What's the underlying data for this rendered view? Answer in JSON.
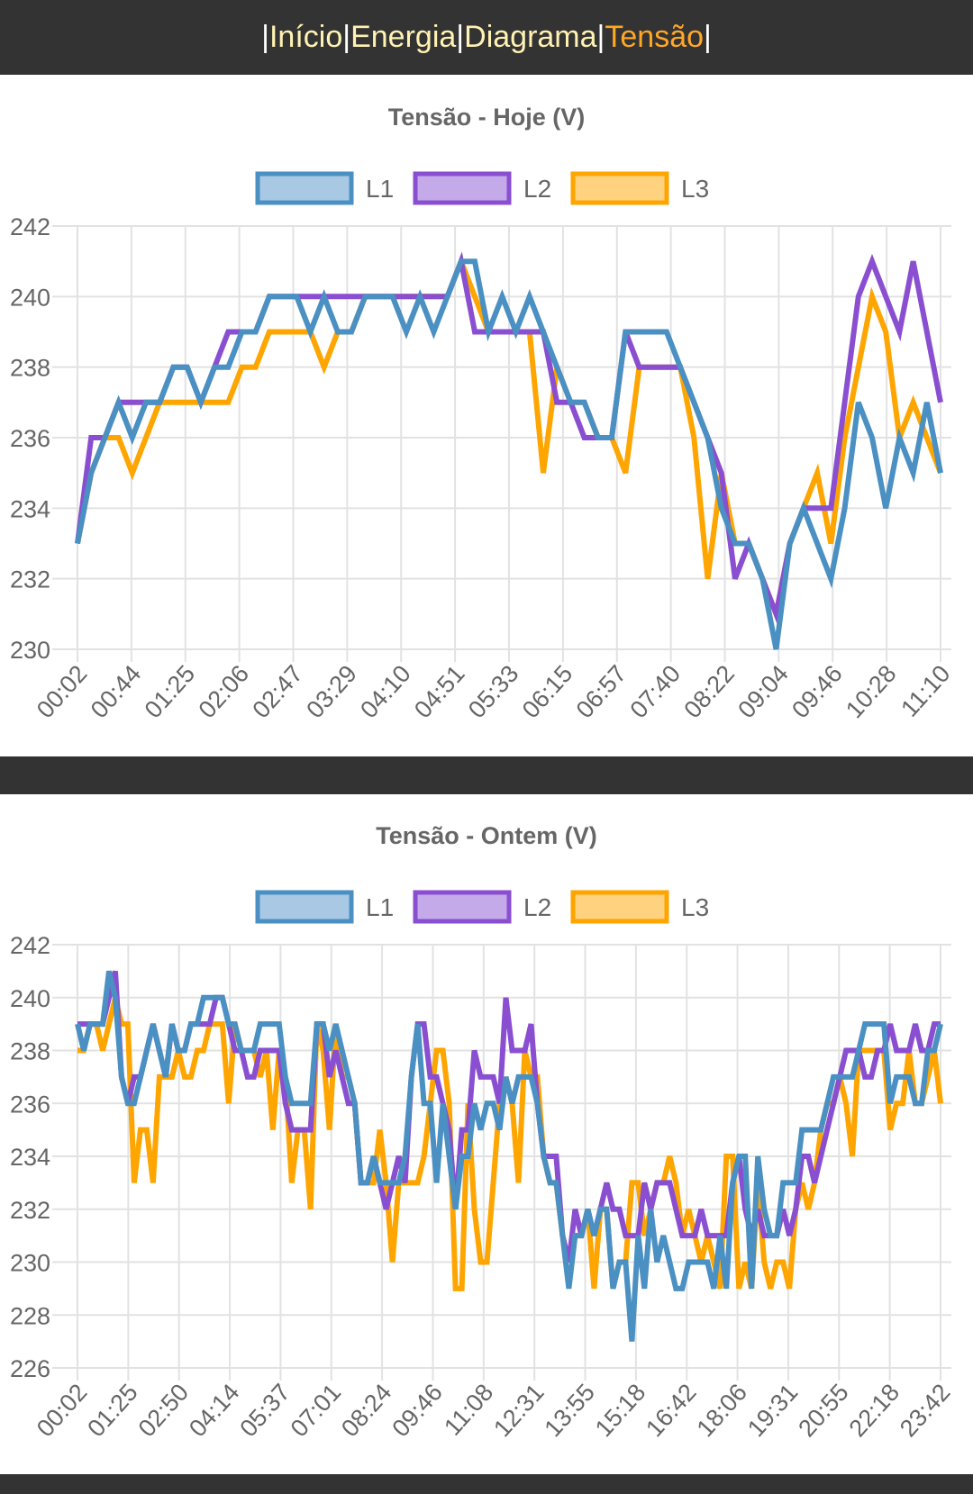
{
  "nav": {
    "sep": "|",
    "items": [
      {
        "label": "Início",
        "active": false
      },
      {
        "label": "Energia",
        "active": false
      },
      {
        "label": "Diagrama",
        "active": false
      },
      {
        "label": "Tensão",
        "active": true
      }
    ],
    "colors": {
      "link": "#fff2b3",
      "active": "#ffa726",
      "background": "#333333"
    }
  },
  "chart_data": [
    {
      "type": "line",
      "title": "Tensão - Hoje (V)",
      "xlabel": "",
      "ylabel": "",
      "ylim": [
        230,
        242
      ],
      "yticks": [
        "242",
        "240",
        "238",
        "236",
        "234",
        "232",
        "230"
      ],
      "grid": true,
      "legend_position": "top",
      "x_tick_labels": [
        "00:02",
        "00:44",
        "01:25",
        "02:06",
        "02:47",
        "03:29",
        "04:10",
        "04:51",
        "05:33",
        "06:15",
        "06:57",
        "07:40",
        "08:22",
        "09:04",
        "09:46",
        "10:28",
        "11:10"
      ],
      "series": [
        {
          "name": "L1",
          "color": "#4a90c2",
          "fill": "#a8c8e4",
          "values": [
            233,
            235,
            236,
            237,
            236,
            237,
            237,
            238,
            238,
            237,
            238,
            238,
            239,
            239,
            240,
            240,
            240,
            239,
            240,
            239,
            239,
            240,
            240,
            240,
            239,
            240,
            239,
            240,
            241,
            241,
            239,
            240,
            239,
            240,
            239,
            238,
            237,
            237,
            236,
            236,
            239,
            239,
            239,
            239,
            238,
            237,
            236,
            234,
            233,
            233,
            232,
            230,
            233,
            234,
            233,
            232,
            234,
            237,
            236,
            234,
            236,
            235,
            237,
            235
          ]
        },
        {
          "name": "L2",
          "color": "#8a4fd0",
          "fill": "#c4aae8",
          "values": [
            233,
            236,
            236,
            237,
            237,
            237,
            237,
            238,
            238,
            237,
            238,
            239,
            239,
            239,
            240,
            240,
            240,
            240,
            240,
            240,
            240,
            240,
            240,
            240,
            240,
            240,
            240,
            240,
            241,
            239,
            239,
            239,
            239,
            239,
            239,
            237,
            237,
            236,
            236,
            236,
            239,
            238,
            238,
            238,
            238,
            237,
            236,
            235,
            232,
            233,
            232,
            231,
            233,
            234,
            234,
            234,
            237,
            240,
            241,
            240,
            239,
            241,
            239,
            237
          ]
        },
        {
          "name": "L3",
          "color": "#ffa500",
          "fill": "#ffd27f",
          "values": [
            233,
            235,
            236,
            236,
            235,
            236,
            237,
            237,
            237,
            237,
            237,
            237,
            238,
            238,
            239,
            239,
            239,
            239,
            238,
            239,
            239,
            240,
            240,
            240,
            240,
            240,
            240,
            240,
            241,
            240,
            239,
            239,
            239,
            239,
            235,
            238,
            237,
            237,
            236,
            236,
            235,
            238,
            238,
            238,
            238,
            236,
            232,
            235,
            233,
            233,
            232,
            231,
            233,
            234,
            235,
            233,
            236,
            238,
            240,
            239,
            236,
            237,
            236,
            235
          ]
        }
      ]
    },
    {
      "type": "line",
      "title": "Tensão - Ontem (V)",
      "xlabel": "",
      "ylabel": "",
      "ylim": [
        226,
        242
      ],
      "yticks": [
        "242",
        "240",
        "238",
        "236",
        "234",
        "232",
        "230",
        "228",
        "226"
      ],
      "grid": true,
      "legend_position": "top",
      "x_tick_labels": [
        "00:02",
        "01:25",
        "02:50",
        "04:14",
        "05:37",
        "07:01",
        "08:24",
        "09:46",
        "11:08",
        "12:31",
        "13:55",
        "15:18",
        "16:42",
        "18:06",
        "19:31",
        "20:55",
        "22:18",
        "23:42"
      ],
      "series": [
        {
          "name": "L1",
          "color": "#4a90c2",
          "fill": "#a8c8e4",
          "values": [
            239,
            238,
            239,
            239,
            239,
            241,
            240,
            237,
            236,
            236,
            237,
            238,
            239,
            238,
            237,
            239,
            238,
            238,
            239,
            239,
            240,
            240,
            240,
            240,
            239,
            239,
            238,
            238,
            238,
            239,
            239,
            239,
            239,
            237,
            236,
            236,
            236,
            236,
            239,
            239,
            238,
            239,
            238,
            237,
            236,
            233,
            233,
            234,
            233,
            233,
            233,
            233,
            234,
            237,
            239,
            236,
            236,
            233,
            236,
            234,
            232,
            234,
            234,
            236,
            235,
            236,
            236,
            235,
            237,
            236,
            237,
            237,
            237,
            236,
            234,
            233,
            233,
            231,
            229,
            231,
            231,
            232,
            231,
            232,
            232,
            229,
            230,
            230,
            227,
            231,
            229,
            232,
            230,
            231,
            230,
            229,
            229,
            230,
            230,
            230,
            230,
            229,
            231,
            229,
            233,
            234,
            234,
            229,
            234,
            232,
            231,
            231,
            233,
            233,
            233,
            235,
            235,
            235,
            235,
            236,
            237,
            237,
            237,
            237,
            238,
            239,
            239,
            239,
            239,
            236,
            237,
            237,
            237,
            236,
            236,
            238,
            238,
            239
          ]
        },
        {
          "name": "L2",
          "color": "#8a4fd0",
          "fill": "#c4aae8",
          "values": [
            239,
            239,
            239,
            239,
            239,
            240,
            241,
            237,
            236,
            237,
            237,
            238,
            239,
            238,
            237,
            239,
            238,
            238,
            239,
            239,
            239,
            239,
            240,
            240,
            239,
            238,
            238,
            237,
            237,
            238,
            238,
            238,
            238,
            236,
            235,
            235,
            235,
            235,
            239,
            239,
            237,
            238,
            237,
            236,
            236,
            233,
            233,
            234,
            233,
            232,
            233,
            234,
            233,
            237,
            239,
            239,
            237,
            237,
            236,
            235,
            232,
            235,
            235,
            238,
            237,
            237,
            237,
            236,
            240,
            238,
            238,
            238,
            239,
            236,
            234,
            234,
            234,
            231,
            230,
            232,
            231,
            232,
            231,
            232,
            233,
            232,
            232,
            231,
            231,
            231,
            233,
            232,
            233,
            233,
            233,
            232,
            231,
            231,
            231,
            232,
            231,
            231,
            231,
            231,
            233,
            234,
            232,
            231,
            232,
            231,
            231,
            231,
            232,
            231,
            232,
            234,
            234,
            233,
            234,
            235,
            236,
            237,
            238,
            238,
            238,
            237,
            237,
            238,
            238,
            239,
            238,
            238,
            238,
            239,
            238,
            238,
            239,
            239
          ]
        },
        {
          "name": "L3",
          "color": "#ffa500",
          "fill": "#ffd27f",
          "values": [
            238,
            238,
            239,
            239,
            238,
            239,
            240,
            239,
            239,
            233,
            235,
            235,
            233,
            237,
            237,
            237,
            238,
            237,
            237,
            238,
            238,
            239,
            239,
            239,
            236,
            239,
            238,
            238,
            238,
            237,
            238,
            235,
            238,
            237,
            233,
            235,
            235,
            232,
            239,
            238,
            235,
            239,
            237,
            237,
            236,
            233,
            233,
            233,
            235,
            233,
            230,
            233,
            233,
            233,
            233,
            234,
            236,
            238,
            238,
            236,
            229,
            229,
            236,
            232,
            230,
            230,
            233,
            236,
            237,
            236,
            233,
            238,
            237,
            237,
            234,
            233,
            233,
            231,
            230,
            231,
            231,
            232,
            229,
            232,
            232,
            229,
            230,
            230,
            233,
            233,
            231,
            232,
            233,
            233,
            234,
            233,
            231,
            232,
            231,
            230,
            231,
            230,
            229,
            234,
            234,
            229,
            230,
            229,
            233,
            230,
            229,
            230,
            230,
            229,
            232,
            233,
            232,
            233,
            235,
            236,
            236,
            237,
            236,
            234,
            238,
            238,
            238,
            238,
            238,
            235,
            236,
            236,
            238,
            236,
            236,
            237,
            238,
            236
          ]
        }
      ]
    }
  ]
}
